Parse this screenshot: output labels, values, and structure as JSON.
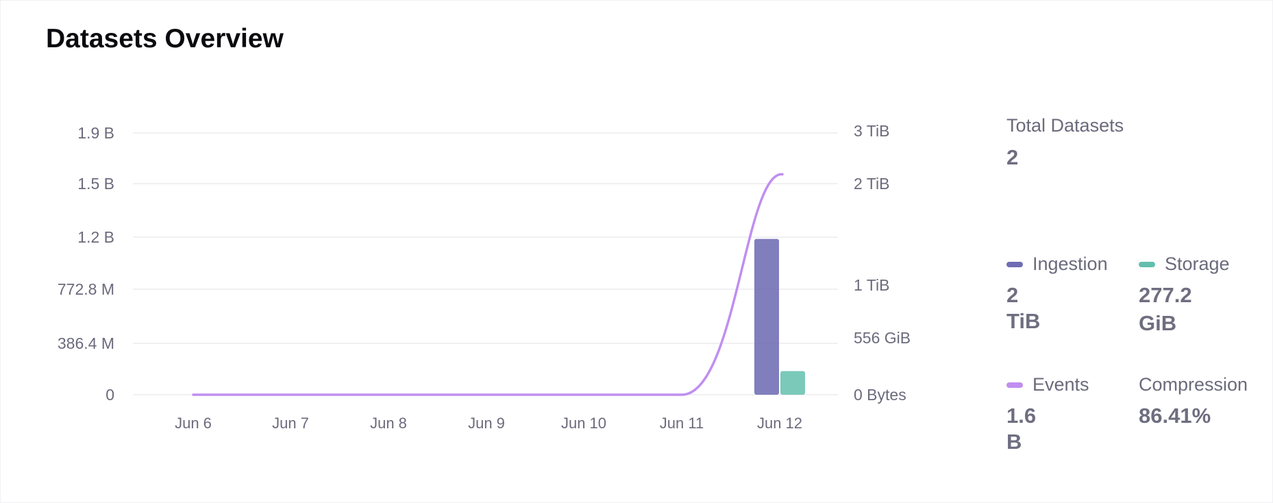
{
  "header": {
    "title": "Datasets Overview"
  },
  "summary": {
    "total_datasets_label": "Total Datasets",
    "total_datasets_value": "2",
    "ingestion_label": "Ingestion",
    "ingestion_value": "2 TiB",
    "storage_label": "Storage",
    "storage_value_line1": "277.2",
    "storage_value_line2": "GiB",
    "events_label": "Events",
    "events_value": "1.6 B",
    "compression_label": "Compression",
    "compression_value": "86.41%"
  },
  "colors": {
    "ingestion": "#6f6cb4",
    "storage": "#63bfad",
    "events": "#c08ef0",
    "grid": "#ececf0"
  },
  "chart_data": {
    "type": "bar",
    "categories": [
      "Jun 6",
      "Jun 7",
      "Jun 8",
      "Jun 9",
      "Jun 10",
      "Jun 11",
      "Jun 12"
    ],
    "left_axis": {
      "ticks": [
        0,
        386400000,
        772800000,
        1200000000,
        1500000000,
        1900000000
      ],
      "tick_labels": [
        "0",
        "386.4 M",
        "772.8 M",
        "1.2 B",
        "1.5 B",
        "1.9 B"
      ]
    },
    "right_axis": {
      "tick_labels": [
        "0 Bytes",
        "556 GiB",
        "1 TiB",
        "2 TiB",
        "3 TiB"
      ],
      "tick_values_gib": [
        0,
        556,
        1024,
        2048,
        3072
      ]
    },
    "series": [
      {
        "name": "Ingestion",
        "type": "bar",
        "axis": "right",
        "unit": "GiB",
        "values": [
          0,
          0,
          0,
          0,
          0,
          0,
          1829
        ]
      },
      {
        "name": "Storage",
        "type": "bar",
        "axis": "right",
        "unit": "GiB",
        "values": [
          0,
          0,
          0,
          0,
          0,
          0,
          277.2
        ]
      },
      {
        "name": "Events",
        "type": "line",
        "axis": "left",
        "values": [
          0,
          0,
          0,
          0,
          0,
          0,
          1600000000
        ]
      }
    ],
    "grid": true
  }
}
